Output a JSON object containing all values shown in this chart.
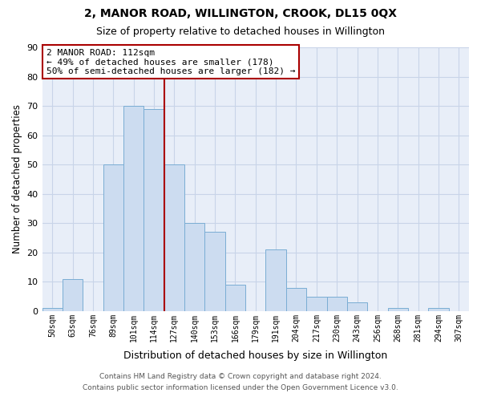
{
  "title": "2, MANOR ROAD, WILLINGTON, CROOK, DL15 0QX",
  "subtitle": "Size of property relative to detached houses in Willington",
  "xlabel": "Distribution of detached houses by size in Willington",
  "ylabel": "Number of detached properties",
  "bar_labels": [
    "50sqm",
    "63sqm",
    "76sqm",
    "89sqm",
    "101sqm",
    "114sqm",
    "127sqm",
    "140sqm",
    "153sqm",
    "166sqm",
    "179sqm",
    "191sqm",
    "204sqm",
    "217sqm",
    "230sqm",
    "243sqm",
    "256sqm",
    "268sqm",
    "281sqm",
    "294sqm",
    "307sqm"
  ],
  "bar_values": [
    1,
    11,
    0,
    50,
    70,
    69,
    50,
    30,
    27,
    9,
    0,
    21,
    8,
    5,
    5,
    3,
    0,
    1,
    0,
    1,
    0
  ],
  "bar_color": "#ccdcf0",
  "bar_edge_color": "#7aadd4",
  "ylim": [
    0,
    90
  ],
  "yticks": [
    0,
    10,
    20,
    30,
    40,
    50,
    60,
    70,
    80,
    90
  ],
  "vline_color": "#aa0000",
  "annotation_line1": "2 MANOR ROAD: 112sqm",
  "annotation_line2": "← 49% of detached houses are smaller (178)",
  "annotation_line3": "50% of semi-detached houses are larger (182) →",
  "annotation_box_color": "#ffffff",
  "annotation_box_edge": "#aa0000",
  "footer_line1": "Contains HM Land Registry data © Crown copyright and database right 2024.",
  "footer_line2": "Contains public sector information licensed under the Open Government Licence v3.0.",
  "bg_color": "#ffffff",
  "axes_bg_color": "#e8eef8",
  "grid_color": "#c8d4e8"
}
